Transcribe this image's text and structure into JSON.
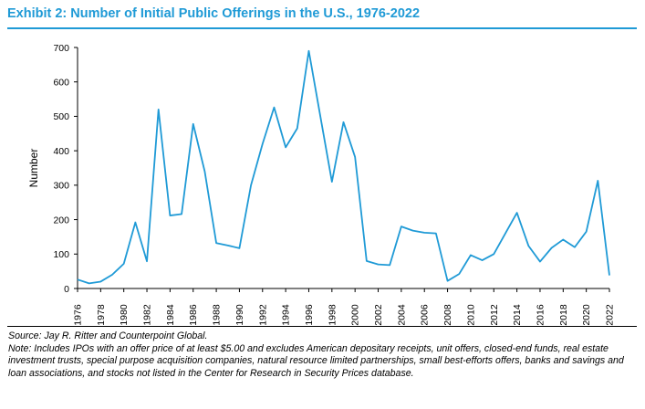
{
  "title": "Exhibit 2: Number of Initial Public Offerings in the U.S., 1976-2022",
  "colors": {
    "accent": "#1f9ad6",
    "line": "#1f9ad6"
  },
  "source": "Source: Jay R. Ritter and Counterpoint Global.",
  "note": "Note: Includes IPOs with an offer price of at least $5.00 and excludes American depositary receipts, unit offers, closed-end funds, real estate investment trusts, special purpose acquisition companies, natural resource limited partnerships, small best-efforts offers, banks and savings and loan associations, and stocks not listed in the Center for Research in Security Prices database.",
  "chart_data": {
    "type": "line",
    "ylabel": "Number",
    "xlabel": "",
    "ylim": [
      0,
      700
    ],
    "yticks": [
      0,
      100,
      200,
      300,
      400,
      500,
      600,
      700
    ],
    "xlim": [
      1976,
      2022
    ],
    "xticks": [
      1976,
      1978,
      1980,
      1982,
      1984,
      1986,
      1988,
      1990,
      1992,
      1994,
      1996,
      1998,
      2000,
      2002,
      2004,
      2006,
      2008,
      2010,
      2012,
      2014,
      2016,
      2018,
      2020,
      2022
    ],
    "grid": false,
    "series": [
      {
        "x": [
          1976,
          1977,
          1978,
          1979,
          1980,
          1981,
          1982,
          1983,
          1984,
          1985,
          1986,
          1987,
          1988,
          1989,
          1990,
          1991,
          1992,
          1993,
          1994,
          1995,
          1996,
          1997,
          1998,
          1999,
          2000,
          2001,
          2002,
          2003,
          2004,
          2005,
          2006,
          2007,
          2008,
          2009,
          2010,
          2011,
          2012,
          2013,
          2014,
          2015,
          2016,
          2017,
          2018,
          2019,
          2020,
          2021,
          2022
        ],
        "values": [
          26,
          15,
          20,
          40,
          72,
          192,
          79,
          520,
          212,
          216,
          478,
          340,
          132,
          125,
          117,
          300,
          420,
          526,
          410,
          465,
          690,
          500,
          310,
          483,
          382,
          80,
          70,
          68,
          180,
          168,
          162,
          160,
          22,
          42,
          97,
          82,
          100,
          160,
          220,
          124,
          78,
          118,
          142,
          120,
          165,
          313,
          38
        ]
      }
    ]
  }
}
